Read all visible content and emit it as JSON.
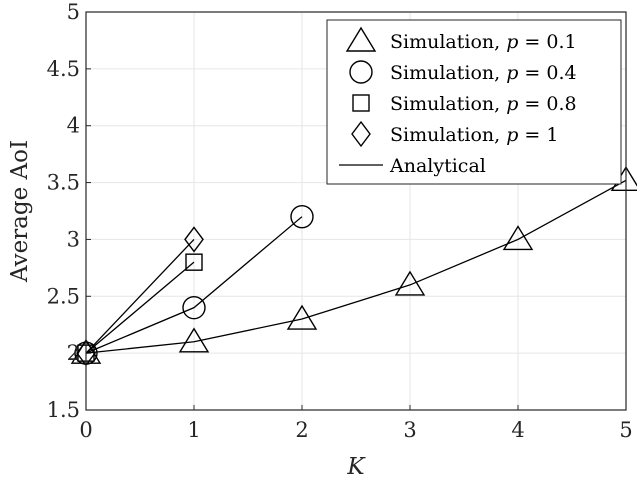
{
  "chart_data": {
    "type": "line",
    "xlabel": "K",
    "ylabel": "Average AoI",
    "xlim": [
      0,
      5
    ],
    "ylim": [
      1.5,
      5
    ],
    "xticks": [
      "0",
      "1",
      "2",
      "3",
      "4",
      "5"
    ],
    "yticks": [
      "1.5",
      "2",
      "2.5",
      "3",
      "3.5",
      "4",
      "4.5",
      "5"
    ],
    "grid": true,
    "legend_position": "top-right",
    "series": [
      {
        "name": "Simulation, p = 0.1",
        "marker": "triangle",
        "x": [
          0,
          1,
          2,
          3,
          4,
          5
        ],
        "y": [
          2.0,
          2.1,
          2.3,
          2.6,
          3.0,
          3.52
        ]
      },
      {
        "name": "Simulation, p = 0.4",
        "marker": "circle",
        "x": [
          0,
          1,
          2
        ],
        "y": [
          2.0,
          2.4,
          3.2
        ]
      },
      {
        "name": "Simulation, p = 0.8",
        "marker": "square",
        "x": [
          0,
          1
        ],
        "y": [
          2.0,
          2.8
        ]
      },
      {
        "name": "Simulation, p = 1",
        "marker": "diamond",
        "x": [
          0,
          1
        ],
        "y": [
          2.0,
          3.0
        ]
      }
    ],
    "legend": [
      {
        "prefix": "Simulation, ",
        "var": "p",
        "value": " = 0.1",
        "marker": "triangle"
      },
      {
        "prefix": "Simulation, ",
        "var": "p",
        "value": " = 0.4",
        "marker": "circle"
      },
      {
        "prefix": "Simulation, ",
        "var": "p",
        "value": " = 0.8",
        "marker": "square"
      },
      {
        "prefix": "Simulation, ",
        "var": "p",
        "value": " = 1",
        "marker": "diamond"
      },
      {
        "prefix": "Analytical",
        "var": "",
        "value": "",
        "marker": "line"
      }
    ]
  }
}
